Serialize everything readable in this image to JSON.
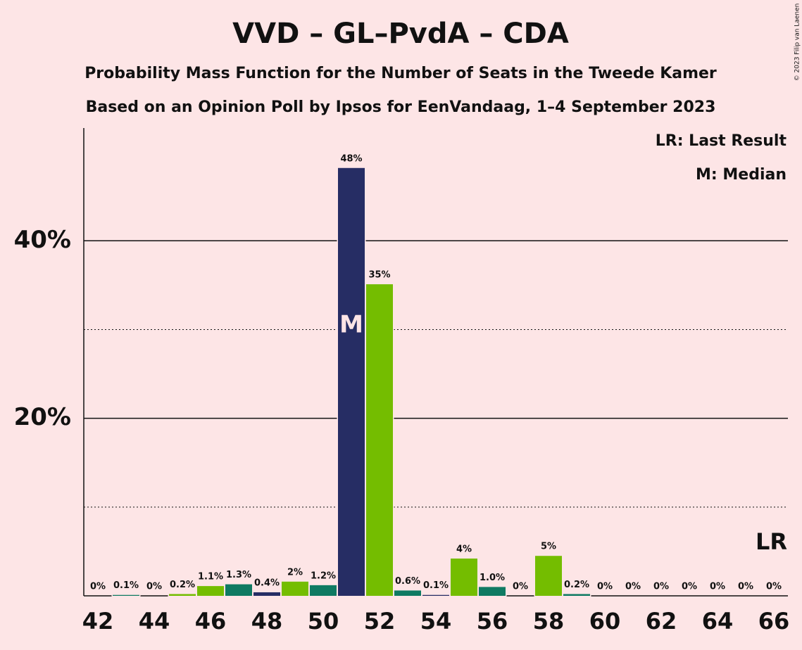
{
  "chart_data": {
    "type": "bar",
    "title": "VVD – GL–PvdA – CDA",
    "subtitle": "Probability Mass Function for the Number of Seats in the Tweede Kamer",
    "subtitle2": "Based on an Opinion Poll by Ipsos for EenVandaag, 1–4 September 2023",
    "copyright": "© 2023 Filip van Laenen",
    "legend": [
      "LR: Last Result",
      "M: Median"
    ],
    "legend_position": "upper right",
    "x": [
      42,
      43,
      44,
      45,
      46,
      47,
      48,
      49,
      50,
      51,
      52,
      53,
      54,
      55,
      56,
      57,
      58,
      59,
      60,
      61,
      62,
      63,
      64,
      65,
      66
    ],
    "values": [
      0,
      0.1,
      0,
      0.2,
      1.1,
      1.3,
      0.4,
      1.6,
      1.2,
      48.2,
      35.1,
      0.6,
      0.1,
      4.2,
      1.0,
      0,
      4.5,
      0.2,
      0,
      0,
      0,
      0,
      0,
      0,
      0
    ],
    "value_labels": [
      "0%",
      "0.1%",
      "0%",
      "0.2%",
      "1.1%",
      "1.3%",
      "0.4%",
      "2%",
      "1.2%",
      "48%",
      "35%",
      "0.6%",
      "0.1%",
      "4%",
      "1.0%",
      "0%",
      "5%",
      "0.2%",
      "0%",
      "0%",
      "0%",
      "0%",
      "0%",
      "0%",
      "0%"
    ],
    "colors": [
      "#74bd00",
      "#0f7a62",
      "#262d64",
      "#74bd00",
      "#74bd00",
      "#0f7a62",
      "#262d64",
      "#74bd00",
      "#0f7a62",
      "#262d64",
      "#74bd00",
      "#0f7a62",
      "#262d64",
      "#74bd00",
      "#0f7a62",
      "#262d64",
      "#74bd00",
      "#0f7a62",
      "#262d64",
      "#74bd00",
      "#0f7a62",
      "#262d64",
      "#74bd00",
      "#0f7a62",
      "#262d64"
    ],
    "median": {
      "x": 51,
      "label": "M"
    },
    "last_result": {
      "x": 66,
      "label": "LR"
    },
    "xlim": [
      41.5,
      66.5
    ],
    "xticks": [
      42,
      44,
      46,
      48,
      50,
      52,
      54,
      56,
      58,
      60,
      62,
      64,
      66
    ],
    "ylim": [
      0,
      52.7
    ],
    "yticks": [
      {
        "value": 20,
        "label": "20%"
      },
      {
        "value": 40,
        "label": "40%"
      }
    ],
    "yminor": [
      10,
      30
    ],
    "grid": true
  }
}
